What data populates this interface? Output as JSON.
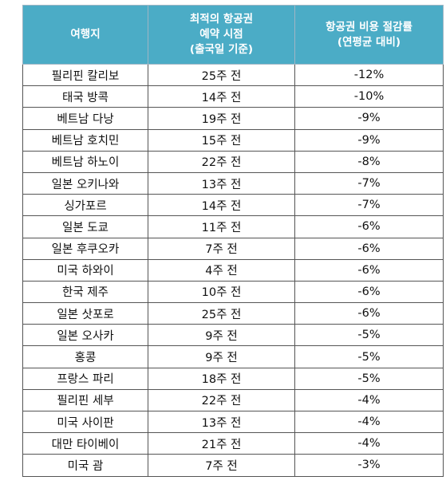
{
  "colors": {
    "header_bg": "#4bacc6",
    "header_text": "#ffffff",
    "cell_text": "#111111",
    "grid": "#555555"
  },
  "table": {
    "headers": {
      "col1": [
        "여행지"
      ],
      "col2": [
        "최적의 항공권",
        "예약 시점",
        "(출국일 기준)"
      ],
      "col3": [
        "항공권 비용 절감률",
        "(연평균 대비)"
      ]
    },
    "rows": [
      {
        "destination": "필리핀 칼리보",
        "timing": "25주 전",
        "savings": "-12%"
      },
      {
        "destination": "태국 방콕",
        "timing": "14주 전",
        "savings": "-10%"
      },
      {
        "destination": "베트남 다낭",
        "timing": "19주 전",
        "savings": "-9%"
      },
      {
        "destination": "베트남 호치민",
        "timing": "15주 전",
        "savings": "-9%"
      },
      {
        "destination": "베트남 하노이",
        "timing": "22주 전",
        "savings": "-8%"
      },
      {
        "destination": "일본 오키나와",
        "timing": "13주 전",
        "savings": "-7%"
      },
      {
        "destination": "싱가포르",
        "timing": "14주 전",
        "savings": "-7%"
      },
      {
        "destination": "일본 도쿄",
        "timing": "11주 전",
        "savings": "-6%"
      },
      {
        "destination": "일본 후쿠오카",
        "timing": "7주 전",
        "savings": "-6%"
      },
      {
        "destination": "미국 하와이",
        "timing": "4주 전",
        "savings": "-6%"
      },
      {
        "destination": "한국 제주",
        "timing": "10주 전",
        "savings": "-6%"
      },
      {
        "destination": "일본 삿포로",
        "timing": "25주 전",
        "savings": "-6%"
      },
      {
        "destination": "일본 오사카",
        "timing": "9주 전",
        "savings": "-5%"
      },
      {
        "destination": "홍콩",
        "timing": "9주 전",
        "savings": "-5%"
      },
      {
        "destination": "프랑스 파리",
        "timing": "18주 전",
        "savings": "-5%"
      },
      {
        "destination": "필리핀 세부",
        "timing": "22주 전",
        "savings": "-4%"
      },
      {
        "destination": "미국 사이판",
        "timing": "13주 전",
        "savings": "-4%"
      },
      {
        "destination": "대만 타이베이",
        "timing": "21주 전",
        "savings": "-4%"
      },
      {
        "destination": "미국 괌",
        "timing": "7주 전",
        "savings": "-3%"
      }
    ]
  }
}
